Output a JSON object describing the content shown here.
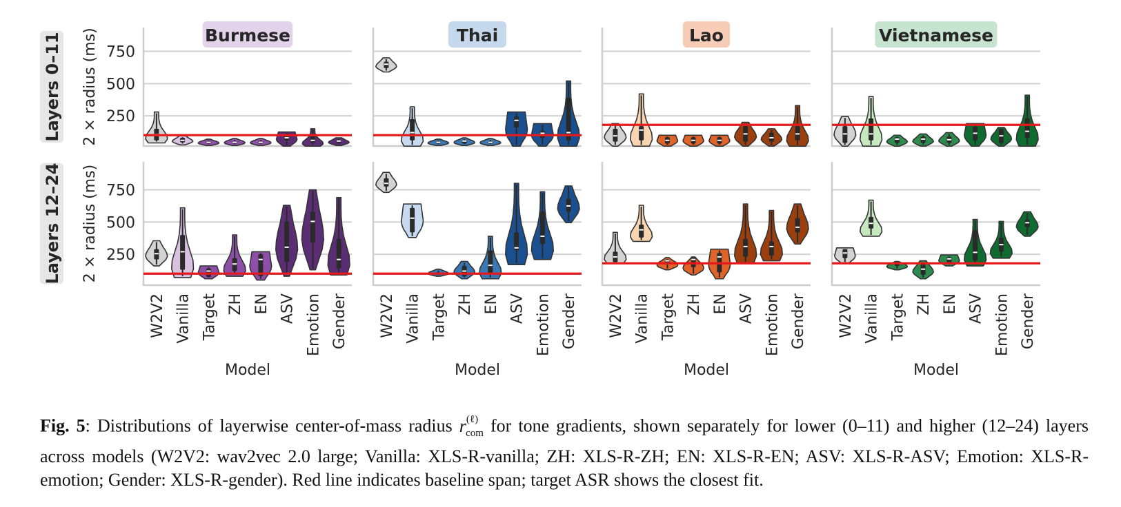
{
  "chart_data": {
    "type": "violin",
    "title": "",
    "xlabel": "Model",
    "ylabel": "2 × radius (ms)",
    "categories": [
      "W2V2",
      "Vanilla",
      "Target",
      "ZH",
      "EN",
      "ASV",
      "Emotion",
      "Gender"
    ],
    "yticks": [
      250,
      500,
      750
    ],
    "ylim": [
      15,
      940
    ],
    "grid": "horizontal",
    "rows": [
      {
        "label": "Layers 0–11"
      },
      {
        "label": "Layers 12–24"
      }
    ],
    "columns": [
      {
        "language": "Burmese",
        "badge_color": "#e3d3ea",
        "baseline": 100,
        "colors": [
          "#d3d3d3",
          "#d7bde2",
          "#9b59b6",
          "#9b59b6",
          "#9b59b6",
          "#5b2c6f",
          "#5b2c6f",
          "#5b2c6f"
        ],
        "fill_colors": [
          "#d3d3d3",
          "#d8c0e0",
          "#8e4fa8",
          "#8e4fa8",
          "#8e4fa8",
          "#5a2d75",
          "#5a2d75",
          "#5a2d75"
        ]
      },
      {
        "language": "Thai",
        "badge_color": "#c6d9ec",
        "baseline": 100,
        "fill_colors": [
          "#d3d3d3",
          "#c6dbef",
          "#3a77b5",
          "#3a77b5",
          "#3a77b5",
          "#1a4f90",
          "#1a4f90",
          "#1a4f90"
        ]
      },
      {
        "language": "Lao",
        "badge_color": "#f7cdb8",
        "baseline": 180,
        "fill_colors": [
          "#d3d3d3",
          "#f8d4b0",
          "#e0632a",
          "#e0632a",
          "#e0632a",
          "#9c3f0e",
          "#9c3f0e",
          "#9c3f0e"
        ]
      },
      {
        "language": "Vietnamese",
        "badge_color": "#c6e4cf",
        "baseline": 180,
        "fill_colors": [
          "#d3d3d3",
          "#c7e9c0",
          "#2e8b4e",
          "#2e8b4e",
          "#2e8b4e",
          "#106b30",
          "#106b30",
          "#106b30"
        ]
      }
    ],
    "panels": [
      {
        "row": 0,
        "col": 0,
        "violins": [
          {
            "min": 40,
            "max": 280,
            "q1": 60,
            "median": 105,
            "q3": 150,
            "shape": "wide-low"
          },
          {
            "min": 25,
            "max": 95,
            "q1": 45,
            "median": 60,
            "q3": 80,
            "shape": "mid"
          },
          {
            "min": 20,
            "max": 70,
            "q1": 35,
            "median": 45,
            "q3": 55,
            "shape": "flat"
          },
          {
            "min": 20,
            "max": 75,
            "q1": 35,
            "median": 45,
            "q3": 55,
            "shape": "flat"
          },
          {
            "min": 20,
            "max": 75,
            "q1": 35,
            "median": 45,
            "q3": 55,
            "shape": "flat"
          },
          {
            "min": 15,
            "max": 125,
            "q1": 60,
            "median": 80,
            "q3": 100,
            "shape": "wide-high"
          },
          {
            "min": 15,
            "max": 150,
            "q1": 40,
            "median": 60,
            "q3": 100,
            "shape": "wide-low"
          },
          {
            "min": 20,
            "max": 80,
            "q1": 40,
            "median": 55,
            "q3": 65,
            "shape": "mid"
          }
        ]
      },
      {
        "row": 0,
        "col": 1,
        "violins": [
          {
            "min": 590,
            "max": 700,
            "q1": 620,
            "median": 650,
            "q3": 670,
            "shape": "mid"
          },
          {
            "min": 15,
            "max": 320,
            "q1": 60,
            "median": 120,
            "q3": 225,
            "shape": "wide-low"
          },
          {
            "min": 20,
            "max": 70,
            "q1": 35,
            "median": 45,
            "q3": 55,
            "shape": "flat"
          },
          {
            "min": 20,
            "max": 80,
            "q1": 35,
            "median": 55,
            "q3": 65,
            "shape": "flat"
          },
          {
            "min": 20,
            "max": 75,
            "q1": 35,
            "median": 45,
            "q3": 55,
            "shape": "flat"
          },
          {
            "min": 15,
            "max": 280,
            "q1": 160,
            "median": 215,
            "q3": 245,
            "shape": "wide-high"
          },
          {
            "min": 15,
            "max": 190,
            "q1": 80,
            "median": 115,
            "q3": 135,
            "shape": "wide-high"
          },
          {
            "min": 15,
            "max": 520,
            "q1": 60,
            "median": 120,
            "q3": 390,
            "shape": "wide-low"
          }
        ]
      },
      {
        "row": 0,
        "col": 2,
        "violins": [
          {
            "min": 15,
            "max": 190,
            "q1": 50,
            "median": 95,
            "q3": 150,
            "shape": "mid"
          },
          {
            "min": 15,
            "max": 420,
            "q1": 60,
            "median": 140,
            "q3": 170,
            "shape": "wide-low"
          },
          {
            "min": 15,
            "max": 100,
            "q1": 35,
            "median": 60,
            "q3": 85,
            "shape": "wide-high"
          },
          {
            "min": 15,
            "max": 100,
            "q1": 35,
            "median": 60,
            "q3": 85,
            "shape": "wide-high"
          },
          {
            "min": 15,
            "max": 100,
            "q1": 35,
            "median": 60,
            "q3": 85,
            "shape": "wide-high"
          },
          {
            "min": 15,
            "max": 200,
            "q1": 50,
            "median": 110,
            "q3": 170,
            "shape": "mid"
          },
          {
            "min": 15,
            "max": 150,
            "q1": 50,
            "median": 80,
            "q3": 120,
            "shape": "mid"
          },
          {
            "min": 15,
            "max": 330,
            "q1": 60,
            "median": 110,
            "q3": 170,
            "shape": "wide-low"
          }
        ]
      },
      {
        "row": 0,
        "col": 3,
        "violins": [
          {
            "min": 15,
            "max": 245,
            "q1": 40,
            "median": 110,
            "q3": 170,
            "shape": "mid"
          },
          {
            "min": 15,
            "max": 400,
            "q1": 60,
            "median": 110,
            "q3": 230,
            "shape": "wide-low"
          },
          {
            "min": 15,
            "max": 100,
            "q1": 40,
            "median": 70,
            "q3": 85,
            "shape": "mid"
          },
          {
            "min": 15,
            "max": 110,
            "q1": 40,
            "median": 70,
            "q3": 90,
            "shape": "mid"
          },
          {
            "min": 15,
            "max": 120,
            "q1": 40,
            "median": 65,
            "q3": 90,
            "shape": "mid"
          },
          {
            "min": 15,
            "max": 190,
            "q1": 60,
            "median": 115,
            "q3": 165,
            "shape": "wide-high"
          },
          {
            "min": 15,
            "max": 160,
            "q1": 40,
            "median": 95,
            "q3": 150,
            "shape": "mid"
          },
          {
            "min": 15,
            "max": 410,
            "q1": 80,
            "median": 130,
            "q3": 230,
            "shape": "wide-low"
          }
        ]
      },
      {
        "row": 1,
        "col": 0,
        "violins": [
          {
            "min": 160,
            "max": 355,
            "q1": 210,
            "median": 255,
            "q3": 290,
            "shape": "mid"
          },
          {
            "min": 70,
            "max": 610,
            "q1": 130,
            "median": 270,
            "q3": 400,
            "shape": "wide-low"
          },
          {
            "min": 60,
            "max": 160,
            "q1": 75,
            "median": 120,
            "q3": 140,
            "shape": "wide-high"
          },
          {
            "min": 80,
            "max": 400,
            "q1": 120,
            "median": 175,
            "q3": 220,
            "shape": "wide-low"
          },
          {
            "min": 50,
            "max": 270,
            "q1": 80,
            "median": 210,
            "q3": 250,
            "shape": "wide-high"
          },
          {
            "min": 80,
            "max": 630,
            "q1": 190,
            "median": 305,
            "q3": 505,
            "shape": "mid"
          },
          {
            "min": 130,
            "max": 750,
            "q1": 340,
            "median": 505,
            "q3": 580,
            "shape": "mid"
          },
          {
            "min": 90,
            "max": 690,
            "q1": 140,
            "median": 210,
            "q3": 370,
            "shape": "wide-low"
          }
        ]
      },
      {
        "row": 1,
        "col": 1,
        "violins": [
          {
            "min": 730,
            "max": 885,
            "q1": 775,
            "median": 800,
            "q3": 840,
            "shape": "mid"
          },
          {
            "min": 380,
            "max": 640,
            "q1": 420,
            "median": 530,
            "q3": 610,
            "shape": "wide-high"
          },
          {
            "min": 80,
            "max": 135,
            "q1": 90,
            "median": 100,
            "q3": 110,
            "shape": "flat"
          },
          {
            "min": 60,
            "max": 195,
            "q1": 80,
            "median": 120,
            "q3": 160,
            "shape": "mid"
          },
          {
            "min": 60,
            "max": 390,
            "q1": 100,
            "median": 165,
            "q3": 280,
            "shape": "wide-low"
          },
          {
            "min": 170,
            "max": 800,
            "q1": 280,
            "median": 300,
            "q3": 420,
            "shape": "wide-low"
          },
          {
            "min": 210,
            "max": 735,
            "q1": 330,
            "median": 390,
            "q3": 580,
            "shape": "wide-low"
          },
          {
            "min": 495,
            "max": 780,
            "q1": 580,
            "median": 625,
            "q3": 680,
            "shape": "mid"
          }
        ]
      },
      {
        "row": 1,
        "col": 2,
        "violins": [
          {
            "min": 180,
            "max": 420,
            "q1": 190,
            "median": 230,
            "q3": 270,
            "shape": "wide-low"
          },
          {
            "min": 350,
            "max": 630,
            "q1": 380,
            "median": 440,
            "q3": 480,
            "shape": "wide-low"
          },
          {
            "min": 130,
            "max": 225,
            "q1": 180,
            "median": 200,
            "q3": 210,
            "shape": "flat"
          },
          {
            "min": 90,
            "max": 230,
            "q1": 150,
            "median": 210,
            "q3": 225,
            "shape": "flat"
          },
          {
            "min": 60,
            "max": 290,
            "q1": 110,
            "median": 230,
            "q3": 260,
            "shape": "wide-high"
          },
          {
            "min": 180,
            "max": 640,
            "q1": 230,
            "median": 310,
            "q3": 370,
            "shape": "wide-low"
          },
          {
            "min": 200,
            "max": 590,
            "q1": 240,
            "median": 310,
            "q3": 350,
            "shape": "wide-low"
          },
          {
            "min": 330,
            "max": 640,
            "q1": 420,
            "median": 460,
            "q3": 530,
            "shape": "mid"
          }
        ]
      },
      {
        "row": 1,
        "col": 3,
        "violins": [
          {
            "min": 180,
            "max": 300,
            "q1": 220,
            "median": 260,
            "q3": 290,
            "shape": "wide-high"
          },
          {
            "min": 390,
            "max": 670,
            "q1": 450,
            "median": 490,
            "q3": 540,
            "shape": "wide-low"
          },
          {
            "min": 130,
            "max": 195,
            "q1": 160,
            "median": 180,
            "q3": 190,
            "shape": "flat"
          },
          {
            "min": 60,
            "max": 200,
            "q1": 90,
            "median": 135,
            "q3": 185,
            "shape": "mid"
          },
          {
            "min": 160,
            "max": 245,
            "q1": 180,
            "median": 215,
            "q3": 230,
            "shape": "wide-high"
          },
          {
            "min": 160,
            "max": 520,
            "q1": 200,
            "median": 265,
            "q3": 440,
            "shape": "wide-low"
          },
          {
            "min": 220,
            "max": 505,
            "q1": 270,
            "median": 325,
            "q3": 380,
            "shape": "wide-low"
          },
          {
            "min": 390,
            "max": 580,
            "q1": 460,
            "median": 495,
            "q3": 520,
            "shape": "mid"
          }
        ]
      }
    ]
  },
  "caption": {
    "fig_label": "Fig. 5",
    "text_before_math": ": Distributions of layerwise center-of-mass radius ",
    "math_var": "r",
    "math_sup": "(ℓ)",
    "math_sub": "com",
    "text_after_math": " for tone gradients, shown separately for lower (0–11) and higher (12–24) layers across models (W2V2: wav2vec 2.0 large; Vanilla: XLS-R-vanilla; ZH: XLS-R-ZH; EN: XLS-R-EN; ASV: XLS-R-ASV; Emotion: XLS-R-emotion; Gender: XLS-R-gender). Red line indicates baseline span; target ASR shows the closest fit."
  },
  "colors": {
    "baseline": "#e41a1c",
    "grid": "#d0d0d0",
    "axis": "#cccccc",
    "text": "#262626",
    "row_badge": "#e6e6e6",
    "outline": "#333333"
  }
}
